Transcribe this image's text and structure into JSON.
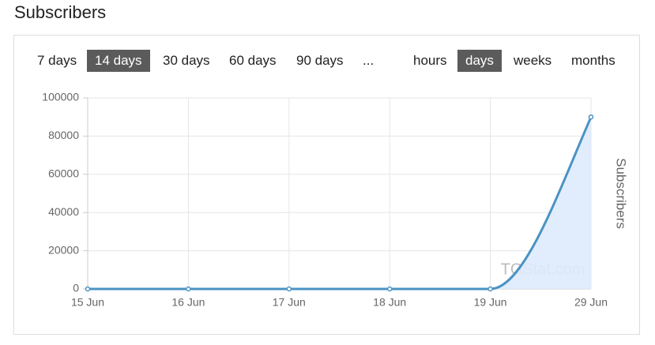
{
  "header": {
    "title": "Subscribers"
  },
  "controls": {
    "ranges": [
      {
        "label": "7 days",
        "active": false
      },
      {
        "label": "14 days",
        "active": true
      },
      {
        "label": "30 days",
        "active": false
      },
      {
        "label": "60 days",
        "active": false
      },
      {
        "label": "90 days",
        "active": false
      },
      {
        "label": "...",
        "active": false
      }
    ],
    "units": [
      {
        "label": "hours",
        "active": false
      },
      {
        "label": "days",
        "active": true
      },
      {
        "label": "weeks",
        "active": false
      },
      {
        "label": "months",
        "active": false
      }
    ]
  },
  "chart_data": {
    "type": "area",
    "y_label": "Subscribers",
    "watermark": "TGStat.com",
    "categories": [
      "15 Jun",
      "16 Jun",
      "17 Jun",
      "18 Jun",
      "19 Jun",
      "29 Jun"
    ],
    "values": [
      0,
      0,
      0,
      0,
      0,
      90000
    ],
    "color": "#4b93c3",
    "fill_color": "#deebfc",
    "ylim": [
      0,
      100000
    ],
    "yticks": [
      0,
      20000,
      40000,
      60000,
      80000,
      100000
    ],
    "grid": true
  }
}
